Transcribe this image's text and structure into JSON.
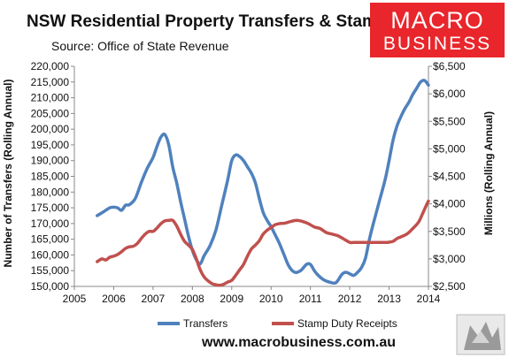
{
  "header": {
    "title": "NSW Residential Property Transfers & Stamp Duty",
    "source": "Source: Office of State Revenue"
  },
  "logo": {
    "line1": "MACRO",
    "line2": "BUSINESS",
    "bg_color": "#e8262c"
  },
  "footer": {
    "url": "www.macrobusiness.com.au"
  },
  "chart_data": {
    "type": "line",
    "x_ticks": [
      "2005",
      "2006",
      "2007",
      "2008",
      "2009",
      "2010",
      "2011",
      "2012",
      "2013",
      "2014"
    ],
    "xlim": [
      2005,
      2014
    ],
    "ylabel_left": "Number of Transfers (Rolling Annual)",
    "ylabel_right": "Millions (Rolling Annual)",
    "ylim_left": [
      150000,
      220000
    ],
    "ylim_right": [
      2500,
      6500
    ],
    "y_ticks_left": [
      "150,000",
      "155,000",
      "160,000",
      "165,000",
      "170,000",
      "175,000",
      "180,000",
      "185,000",
      "190,000",
      "195,000",
      "200,000",
      "205,000",
      "210,000",
      "215,000",
      "220,000"
    ],
    "y_ticks_right": [
      "$2,500",
      "$3,000",
      "$3,500",
      "$4,000",
      "$4,500",
      "$5,000",
      "$5,500",
      "$6,000",
      "$6,500"
    ],
    "legend_position": "bottom",
    "grid": false,
    "series": [
      {
        "name": "Transfers",
        "axis": "left",
        "color": "#4f81bd",
        "x": [
          2005.58,
          2005.75,
          2005.9,
          2006.0,
          2006.1,
          2006.2,
          2006.3,
          2006.4,
          2006.55,
          2006.7,
          2006.85,
          2007.0,
          2007.1,
          2007.2,
          2007.3,
          2007.4,
          2007.5,
          2007.6,
          2007.7,
          2007.8,
          2007.9,
          2008.0,
          2008.1,
          2008.2,
          2008.3,
          2008.45,
          2008.6,
          2008.75,
          2008.9,
          2009.0,
          2009.1,
          2009.2,
          2009.3,
          2009.4,
          2009.5,
          2009.6,
          2009.7,
          2009.8,
          2009.9,
          2010.0,
          2010.1,
          2010.2,
          2010.3,
          2010.45,
          2010.6,
          2010.75,
          2010.9,
          2011.0,
          2011.1,
          2011.2,
          2011.35,
          2011.5,
          2011.65,
          2011.8,
          2011.9,
          2012.0,
          2012.1,
          2012.2,
          2012.3,
          2012.4,
          2012.5,
          2012.6,
          2012.75,
          2012.9,
          2013.0,
          2013.1,
          2013.2,
          2013.3,
          2013.4,
          2013.5,
          2013.6,
          2013.7,
          2013.8,
          2013.9,
          2014.0
        ],
        "values": [
          172500,
          173800,
          175000,
          175200,
          175000,
          174200,
          175800,
          176000,
          178000,
          183000,
          187500,
          191000,
          194500,
          197500,
          198300,
          195000,
          188000,
          183000,
          177000,
          171500,
          166000,
          161500,
          158500,
          157200,
          159800,
          163000,
          168000,
          176000,
          184000,
          190000,
          191800,
          191300,
          190000,
          188000,
          186000,
          183000,
          178000,
          173500,
          171000,
          169000,
          166500,
          164000,
          161000,
          156500,
          154500,
          155000,
          157000,
          157000,
          155000,
          153500,
          152000,
          151300,
          151200,
          153800,
          154500,
          154000,
          153500,
          154500,
          156000,
          159000,
          165000,
          170000,
          177000,
          184000,
          190000,
          196500,
          201000,
          204000,
          206500,
          208500,
          211000,
          213000,
          215000,
          215500,
          214000
        ]
      },
      {
        "name": "Stamp Duty Receipts",
        "axis": "right",
        "color": "#c0504d",
        "x": [
          2005.58,
          2005.7,
          2005.8,
          2005.9,
          2006.0,
          2006.1,
          2006.2,
          2006.3,
          2006.4,
          2006.5,
          2006.6,
          2006.7,
          2006.8,
          2006.9,
          2007.0,
          2007.1,
          2007.2,
          2007.3,
          2007.4,
          2007.5,
          2007.6,
          2007.7,
          2007.8,
          2007.9,
          2008.0,
          2008.1,
          2008.2,
          2008.3,
          2008.4,
          2008.5,
          2008.6,
          2008.7,
          2008.8,
          2008.9,
          2009.0,
          2009.1,
          2009.2,
          2009.3,
          2009.4,
          2009.5,
          2009.6,
          2009.7,
          2009.8,
          2009.9,
          2010.0,
          2010.1,
          2010.2,
          2010.35,
          2010.5,
          2010.65,
          2010.8,
          2010.95,
          2011.1,
          2011.25,
          2011.4,
          2011.55,
          2011.7,
          2011.85,
          2012.0,
          2012.1,
          2012.2,
          2012.35,
          2012.5,
          2012.65,
          2012.8,
          2012.95,
          2013.1,
          2013.2,
          2013.3,
          2013.45,
          2013.6,
          2013.75,
          2013.85,
          2013.95,
          2014.0
        ],
        "values": [
          2950,
          3000,
          2980,
          3030,
          3050,
          3080,
          3130,
          3190,
          3220,
          3230,
          3280,
          3370,
          3450,
          3500,
          3500,
          3560,
          3640,
          3690,
          3700,
          3700,
          3600,
          3450,
          3320,
          3250,
          3170,
          3000,
          2800,
          2670,
          2600,
          2550,
          2530,
          2520,
          2540,
          2580,
          2610,
          2700,
          2800,
          2900,
          3050,
          3180,
          3250,
          3330,
          3450,
          3520,
          3570,
          3620,
          3640,
          3650,
          3680,
          3700,
          3680,
          3640,
          3580,
          3550,
          3480,
          3450,
          3420,
          3360,
          3300,
          3300,
          3300,
          3300,
          3300,
          3300,
          3300,
          3300,
          3320,
          3370,
          3400,
          3450,
          3550,
          3670,
          3820,
          3980,
          4050
        ]
      }
    ]
  }
}
